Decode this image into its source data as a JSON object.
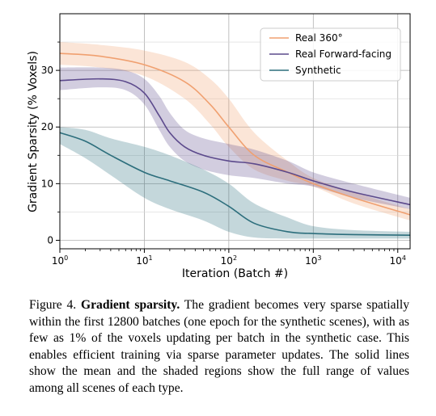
{
  "chart_data": {
    "type": "area",
    "xlabel": "Iteration (Batch #)",
    "ylabel": "Gradient Sparsity (% Voxels)",
    "xscale": "log",
    "xlim": [
      1,
      14000
    ],
    "ylim": [
      -1.5,
      40
    ],
    "xticks": [
      {
        "value": 1,
        "base": "10",
        "exp": "0"
      },
      {
        "value": 10,
        "base": "10",
        "exp": "1"
      },
      {
        "value": 100,
        "base": "10",
        "exp": "2"
      },
      {
        "value": 1000,
        "base": "10",
        "exp": "3"
      },
      {
        "value": 10000,
        "base": "10",
        "exp": "4"
      }
    ],
    "yticks": [
      0,
      10,
      20,
      30
    ],
    "grid": true,
    "legend_position": "top-right",
    "series": [
      {
        "name": "Real 360°",
        "color": "#f0a070",
        "x": [
          1,
          3,
          10,
          30,
          60,
          100,
          200,
          500,
          1000,
          3000,
          14000
        ],
        "mean": [
          33,
          32.5,
          31,
          28,
          24,
          20,
          15,
          12,
          10,
          7.5,
          4.5
        ],
        "lower": [
          31,
          30.5,
          29,
          25,
          20.5,
          16.5,
          12.5,
          10.5,
          9.5,
          6.5,
          3.5
        ],
        "upper": [
          35,
          34.5,
          33.5,
          31.5,
          28.5,
          25,
          19,
          14,
          11,
          8.5,
          5.5
        ]
      },
      {
        "name": "Real Forward-facing",
        "color": "#5c4a8c",
        "x": [
          1,
          3,
          6,
          10,
          15,
          20,
          30,
          50,
          100,
          200,
          500,
          1000,
          3000,
          14000
        ],
        "mean": [
          28.2,
          28.5,
          28,
          26,
          22,
          19,
          16.5,
          15,
          14,
          13.5,
          12,
          10.5,
          8.5,
          6.3
        ],
        "lower": [
          26.5,
          27,
          26.5,
          24,
          19.5,
          16.5,
          14,
          12.5,
          11.5,
          11,
          10,
          9.5,
          7.5,
          5.5
        ],
        "upper": [
          30.5,
          30.5,
          30,
          28.5,
          25.5,
          22.5,
          19.5,
          18,
          17,
          16,
          14,
          12,
          10,
          7.5
        ]
      },
      {
        "name": "Synthetic",
        "color": "#2c6e7c",
        "x": [
          1,
          2,
          4,
          10,
          20,
          50,
          100,
          200,
          500,
          1000,
          3000,
          14000
        ],
        "mean": [
          19,
          17.5,
          15,
          12,
          10.5,
          8.5,
          6,
          3,
          1.5,
          1.2,
          1,
          0.9
        ],
        "lower": [
          17,
          14.5,
          11.5,
          7.5,
          5.5,
          3.5,
          1.5,
          0.5,
          0.3,
          0.3,
          0.3,
          0.3
        ],
        "upper": [
          20,
          19.5,
          18,
          16.5,
          15,
          12.5,
          10,
          6.5,
          4,
          2.5,
          1.8,
          1.5
        ]
      }
    ]
  },
  "caption": {
    "prefix": "Figure 4.",
    "title": "Gradient sparsity.",
    "body": "The gradient becomes very sparse spatially within the first 12800 batches (one epoch for the synthetic scenes), with as few as 1% of the voxels updating per batch in the synthetic case. This enables efficient training via sparse parameter updates. The solid lines show the mean and the shaded regions show the full range of values among all scenes of each type."
  }
}
